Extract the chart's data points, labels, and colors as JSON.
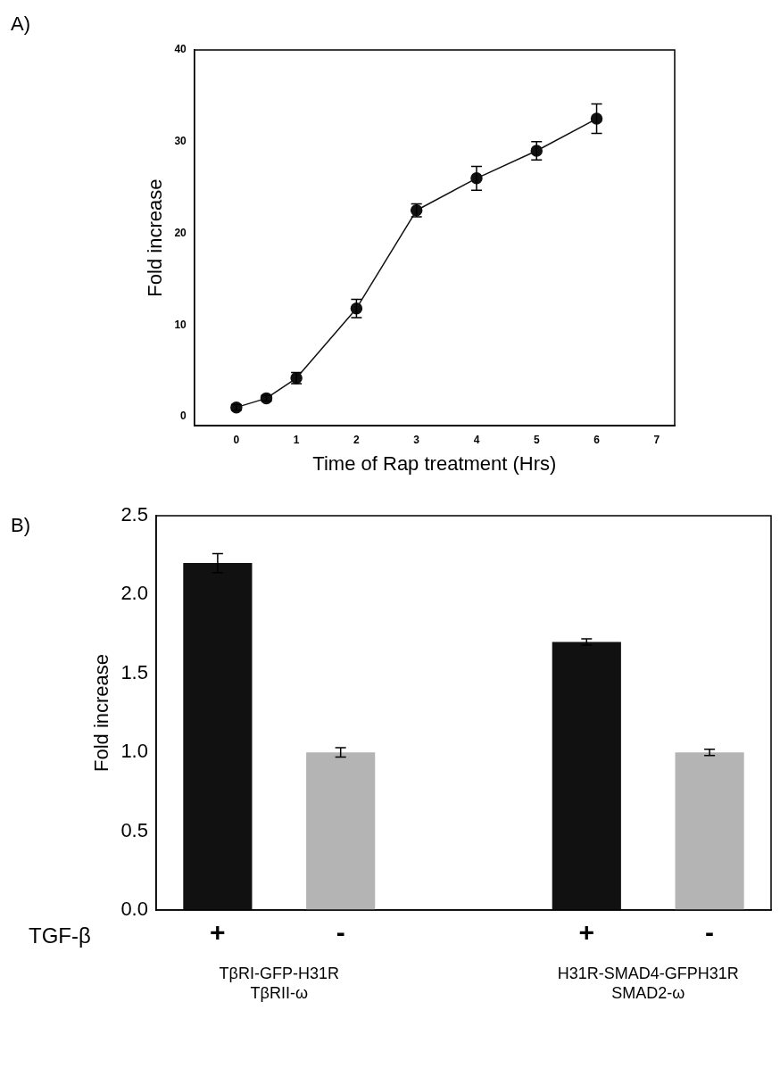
{
  "chart_data": [
    {
      "type": "line",
      "xlabel": "Time of Rap treatment (Hrs)",
      "ylabel": "Fold increase",
      "annotations": [
        "A)"
      ],
      "x": [
        0,
        0.5,
        1,
        2,
        3,
        4,
        5,
        6
      ],
      "values": [
        1,
        2,
        4.2,
        11.8,
        22.5,
        26,
        29,
        32.5
      ],
      "errors": [
        0.3,
        0.3,
        0.6,
        1,
        0.7,
        1.3,
        1,
        1.6
      ],
      "color": "#111111",
      "marker": "circle",
      "line_style": "solid",
      "xlim": [
        -0.7,
        7.3
      ],
      "xticks": [
        0,
        1,
        2,
        3,
        4,
        5,
        6,
        7
      ],
      "ylim": [
        -1,
        40
      ],
      "yticks": [
        0,
        10,
        20,
        30,
        40
      ],
      "legend": false
    },
    {
      "type": "bar",
      "ylabel": "Fold increase",
      "annotations": [
        "B)",
        "TGF-β",
        "TβRI-GFP-H31R\nTβRII-ω",
        "H31R-SMAD4-GFPH31R\nSMAD2-ω"
      ],
      "categories": [
        "+",
        "-",
        null,
        "+",
        "-"
      ],
      "values": [
        2.2,
        1.0,
        null,
        1.7,
        1.0
      ],
      "errors": [
        0.06,
        0.03,
        null,
        0.02,
        0.02
      ],
      "colors": [
        "#111111",
        "#b4b4b4",
        null,
        "#111111",
        "#b4b4b4"
      ],
      "ylim": [
        0,
        2.5
      ],
      "yticks": [
        {
          "value": 0,
          "label": "0.0"
        },
        0.5,
        {
          "value": 1,
          "label": "1.0"
        },
        1.5,
        {
          "value": 2,
          "label": "2.0"
        },
        2.5
      ],
      "legend": false
    }
  ]
}
